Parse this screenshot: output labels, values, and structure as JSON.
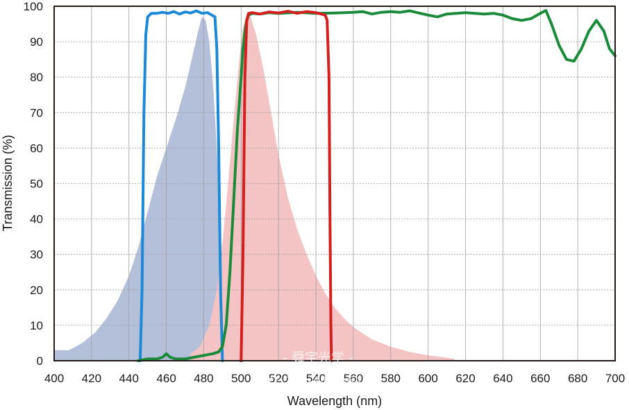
{
  "chart_data": {
    "type": "area",
    "title": "",
    "xlabel": "Wavelength (nm)",
    "ylabel": "Transmission (%)",
    "xlim": [
      400,
      700
    ],
    "ylim": [
      0,
      100
    ],
    "xticks": [
      400,
      420,
      440,
      460,
      480,
      500,
      520,
      540,
      560,
      580,
      600,
      620,
      640,
      660,
      680,
      700
    ],
    "yticks": [
      0,
      10,
      20,
      30,
      40,
      50,
      60,
      70,
      80,
      90,
      100
    ],
    "grid": true,
    "legend": "none",
    "series": [
      {
        "kind": "area",
        "color": "#b4bfda",
        "x": [
          400,
          408,
          415,
          422,
          428,
          434,
          440,
          445,
          450,
          455,
          460,
          465,
          470,
          474,
          477,
          479,
          481,
          483,
          485,
          487,
          489,
          491,
          493
        ],
        "y": [
          3,
          3,
          5,
          8,
          12,
          17,
          24,
          32,
          42,
          52,
          60,
          68,
          77,
          86,
          93,
          97,
          96,
          90,
          78,
          60,
          36,
          12,
          0
        ]
      },
      {
        "kind": "area",
        "color": "#f4c3c3",
        "x": [
          473,
          478,
          483,
          487,
          490,
          493,
          496,
          499,
          501,
          503,
          505,
          508,
          512,
          516,
          520,
          525,
          530,
          535,
          540,
          545,
          550,
          555,
          560,
          570,
          580,
          590,
          600,
          608,
          614
        ],
        "y": [
          2,
          4,
          10,
          20,
          33,
          50,
          68,
          85,
          94,
          98,
          97,
          92,
          82,
          70,
          58,
          46,
          37,
          30,
          24,
          19,
          15,
          12,
          9.5,
          6,
          4,
          2.5,
          1.5,
          1,
          0.5
        ]
      },
      {
        "kind": "line",
        "color": "#1c88d6",
        "x": [
          446,
          447,
          448,
          449,
          450,
          452,
          455,
          458,
          461,
          464,
          467,
          470,
          473,
          476,
          479,
          482,
          484,
          486,
          487,
          488,
          489,
          490
        ],
        "y": [
          0,
          20,
          70,
          92,
          97,
          98,
          98,
          98.3,
          98,
          98.5,
          97.8,
          98.4,
          98.1,
          98.7,
          98,
          98.2,
          97.6,
          97,
          88,
          60,
          20,
          0
        ]
      },
      {
        "kind": "line",
        "color": "#1b8a3a",
        "x": [
          445,
          450,
          455,
          458,
          460,
          462,
          465,
          470,
          475,
          480,
          485,
          488,
          490,
          492,
          494,
          496,
          498,
          500,
          501,
          502,
          503,
          504,
          506,
          510,
          515,
          520,
          530,
          540,
          550,
          560,
          565,
          570,
          575,
          580,
          585,
          590,
          595,
          600,
          605,
          610,
          615,
          620,
          625,
          630,
          635,
          640,
          645,
          650,
          655,
          660,
          663,
          666,
          670,
          674,
          678,
          682,
          686,
          690,
          694,
          697,
          700
        ],
        "y": [
          0,
          0.5,
          0.5,
          1,
          2,
          1,
          0.5,
          0.5,
          1,
          1.5,
          2,
          2.5,
          4,
          10,
          25,
          45,
          65,
          80,
          88,
          93,
          96,
          97.5,
          98,
          97.8,
          98.2,
          98,
          98.3,
          98,
          98.1,
          98.3,
          98.5,
          97.8,
          98.3,
          98.5,
          98.3,
          98.7,
          98.1,
          97.5,
          97,
          97.8,
          98,
          98.2,
          98,
          97.8,
          98,
          97.5,
          96.5,
          96,
          96.5,
          98,
          98.8,
          95,
          89,
          85,
          84.5,
          88,
          93,
          96,
          93,
          88,
          86
        ]
      },
      {
        "kind": "line",
        "color": "#d41f1f",
        "x": [
          500,
          501,
          502,
          503,
          504,
          506,
          510,
          515,
          520,
          525,
          530,
          535,
          540,
          545,
          546,
          547,
          547.5,
          548,
          548.3
        ],
        "y": [
          0,
          30,
          80,
          96,
          98,
          98.2,
          97.8,
          98.4,
          98.1,
          98.6,
          98,
          98.5,
          98.2,
          97.5,
          96,
          80,
          40,
          10,
          0
        ]
      }
    ],
    "watermark": {
      "name": "- 舜宇光学 -",
      "qq": "QQ: 155-4453-6459"
    }
  }
}
